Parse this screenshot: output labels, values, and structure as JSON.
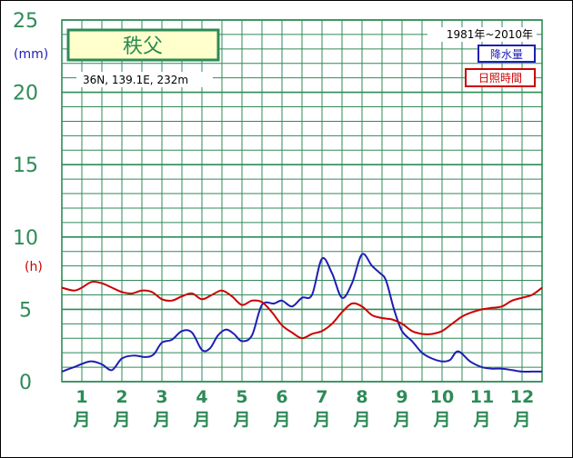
{
  "station": {
    "name": "秩父",
    "location": "36N, 139.1E, 232m",
    "period": "1981年~2010年"
  },
  "legend": [
    {
      "label": "降水量",
      "color": "#1e1eb4"
    },
    {
      "label": "日照時間",
      "color": "#cc0000"
    }
  ],
  "colors": {
    "grid": "#2e8b57",
    "box_fill": "#ffffcc",
    "box_border": "#2e8b57"
  },
  "chart_data": {
    "type": "line",
    "y_axis": {
      "ticks": [
        "0",
        "5",
        "10",
        "15",
        "20",
        "25"
      ],
      "unit_primary": "(mm)",
      "unit_secondary": "(h)",
      "ylim": [
        0,
        25
      ]
    },
    "x_axis": {
      "labels": [
        "1",
        "2",
        "3",
        "4",
        "5",
        "6",
        "7",
        "8",
        "9",
        "10",
        "11",
        "12"
      ],
      "unit": "月",
      "xlim": [
        0.5,
        12.5
      ]
    },
    "series": [
      {
        "name": "降水量",
        "color": "#1e1eb4",
        "x": [
          0.5,
          0.8,
          1.2,
          1.5,
          1.75,
          2.0,
          2.3,
          2.6,
          2.8,
          3.0,
          3.25,
          3.5,
          3.75,
          4.0,
          4.2,
          4.4,
          4.6,
          4.8,
          5.0,
          5.25,
          5.5,
          5.8,
          6.0,
          6.25,
          6.5,
          6.75,
          7.0,
          7.25,
          7.5,
          7.75,
          8.0,
          8.25,
          8.45,
          8.6,
          8.8,
          9.0,
          9.25,
          9.5,
          9.75,
          10.0,
          10.2,
          10.4,
          10.7,
          11.0,
          11.25,
          11.5,
          11.75,
          12.0,
          12.25,
          12.5
        ],
        "y": [
          0.7,
          1.0,
          1.4,
          1.2,
          0.8,
          1.6,
          1.8,
          1.7,
          1.9,
          2.7,
          2.9,
          3.5,
          3.4,
          2.2,
          2.3,
          3.2,
          3.6,
          3.3,
          2.8,
          3.2,
          5.3,
          5.4,
          5.6,
          5.2,
          5.8,
          6.0,
          8.5,
          7.5,
          5.8,
          6.8,
          8.8,
          8.0,
          7.5,
          7.0,
          5.0,
          3.5,
          2.8,
          2.0,
          1.6,
          1.4,
          1.5,
          2.1,
          1.4,
          1.0,
          0.9,
          0.9,
          0.8,
          0.7,
          0.7,
          0.7
        ]
      },
      {
        "name": "日照時間",
        "color": "#cc0000",
        "x": [
          0.5,
          0.8,
          1.0,
          1.25,
          1.5,
          1.75,
          2.0,
          2.25,
          2.5,
          2.75,
          3.0,
          3.25,
          3.5,
          3.75,
          4.0,
          4.25,
          4.5,
          4.75,
          5.0,
          5.25,
          5.5,
          5.75,
          6.0,
          6.25,
          6.5,
          6.75,
          7.0,
          7.25,
          7.5,
          7.75,
          8.0,
          8.25,
          8.5,
          8.75,
          9.0,
          9.25,
          9.5,
          9.75,
          10.0,
          10.25,
          10.5,
          10.75,
          11.0,
          11.25,
          11.5,
          11.75,
          12.0,
          12.25,
          12.5
        ],
        "y": [
          6.5,
          6.3,
          6.5,
          6.9,
          6.8,
          6.5,
          6.2,
          6.1,
          6.3,
          6.2,
          5.7,
          5.6,
          5.9,
          6.1,
          5.7,
          6.0,
          6.3,
          5.9,
          5.3,
          5.6,
          5.5,
          4.8,
          3.9,
          3.4,
          3.0,
          3.3,
          3.5,
          4.0,
          4.8,
          5.4,
          5.2,
          4.6,
          4.4,
          4.3,
          4.0,
          3.5,
          3.3,
          3.3,
          3.5,
          4.0,
          4.5,
          4.8,
          5.0,
          5.1,
          5.2,
          5.6,
          5.8,
          6.0,
          6.5
        ]
      }
    ]
  }
}
